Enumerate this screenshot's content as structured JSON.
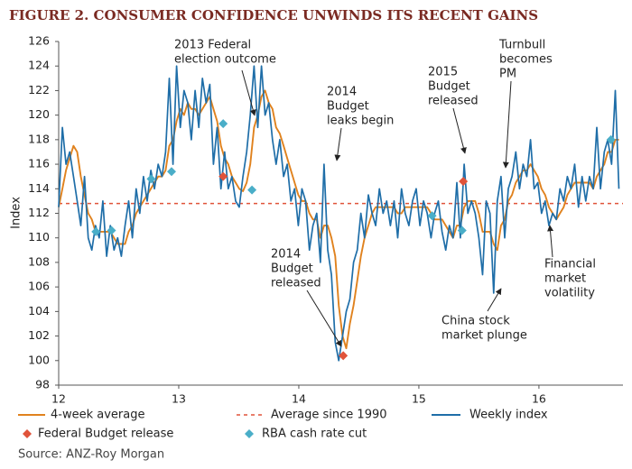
{
  "chart_data": {
    "type": "line",
    "title": "FIGURE 2. CONSUMER CONFIDENCE UNWINDS ITS RECENT GAINS",
    "y_label": "Index",
    "source": "Source: ANZ-Roy Morgan",
    "xlim": [
      12,
      16.7
    ],
    "xticks": [
      12,
      13,
      14,
      15,
      16
    ],
    "ylim": [
      98,
      126
    ],
    "yticks": [
      98,
      100,
      102,
      104,
      106,
      108,
      110,
      112,
      114,
      116,
      118,
      120,
      122,
      124,
      126
    ],
    "x": [
      12.0,
      12.031,
      12.061,
      12.092,
      12.123,
      12.154,
      12.184,
      12.215,
      12.246,
      12.276,
      12.307,
      12.338,
      12.368,
      12.399,
      12.43,
      12.461,
      12.491,
      12.522,
      12.553,
      12.583,
      12.614,
      12.645,
      12.675,
      12.706,
      12.737,
      12.768,
      12.798,
      12.829,
      12.86,
      12.89,
      12.921,
      12.952,
      12.982,
      13.013,
      13.044,
      13.075,
      13.105,
      13.136,
      13.167,
      13.197,
      13.228,
      13.259,
      13.289,
      13.32,
      13.351,
      13.382,
      13.412,
      13.443,
      13.474,
      13.504,
      13.535,
      13.566,
      13.596,
      13.627,
      13.658,
      13.689,
      13.719,
      13.75,
      13.781,
      13.811,
      13.842,
      13.873,
      13.903,
      13.934,
      13.965,
      13.996,
      14.026,
      14.057,
      14.088,
      14.118,
      14.149,
      14.18,
      14.21,
      14.241,
      14.272,
      14.303,
      14.333,
      14.364,
      14.395,
      14.425,
      14.456,
      14.487,
      14.517,
      14.548,
      14.579,
      14.61,
      14.64,
      14.671,
      14.702,
      14.732,
      14.763,
      14.794,
      14.824,
      14.855,
      14.886,
      14.917,
      14.947,
      14.978,
      15.009,
      15.039,
      15.07,
      15.101,
      15.131,
      15.162,
      15.193,
      15.224,
      15.254,
      15.285,
      15.316,
      15.346,
      15.377,
      15.408,
      15.438,
      15.469,
      15.5,
      15.531,
      15.561,
      15.592,
      15.623,
      15.653,
      15.684,
      15.715,
      15.745,
      15.776,
      15.807,
      15.838,
      15.868,
      15.899,
      15.93,
      15.96,
      15.991,
      16.022,
      16.052,
      16.083,
      16.114,
      16.145,
      16.175,
      16.206,
      16.237,
      16.267,
      16.298,
      16.329,
      16.359,
      16.39,
      16.421,
      16.452,
      16.482,
      16.513,
      16.544,
      16.574,
      16.605,
      16.636,
      16.666
    ],
    "series": [
      {
        "name": "Weekly index",
        "color": "#1f6ea8",
        "values": [
          112.5,
          119,
          116,
          117,
          115,
          113,
          111,
          115,
          110,
          109,
          111,
          110,
          113,
          108.5,
          111,
          109,
          110,
          108.5,
          111,
          113,
          110,
          114,
          112,
          115,
          113,
          115.5,
          114,
          116,
          115,
          117,
          123,
          116,
          124,
          119,
          122,
          121,
          118,
          122,
          119,
          123,
          121,
          122.5,
          116,
          119,
          114,
          117,
          114,
          115,
          113,
          112.5,
          115,
          117,
          120,
          124,
          119,
          124,
          120,
          121,
          118,
          116,
          118,
          115,
          116,
          113,
          114,
          111,
          114,
          113,
          109,
          111,
          112,
          108,
          116,
          109,
          107,
          101.5,
          100,
          102,
          104,
          105,
          108,
          109,
          112,
          110,
          113.5,
          112,
          111,
          114,
          112,
          113,
          111,
          113,
          110,
          114,
          112,
          111,
          113,
          114,
          111,
          113,
          112,
          110,
          112,
          113,
          110.5,
          109,
          111,
          110,
          114.5,
          110,
          116,
          112,
          113,
          112,
          110,
          107,
          113,
          112,
          105.5,
          113,
          115,
          110,
          114,
          115,
          117,
          114,
          116,
          115,
          118,
          114,
          114.5,
          112,
          113,
          111,
          112,
          111.5,
          114,
          113,
          115,
          114,
          116,
          112.5,
          115,
          113,
          115,
          114,
          119,
          114,
          117,
          118,
          116,
          122,
          114
        ]
      },
      {
        "name": "4-week average",
        "color": "#e0821e",
        "values": [
          112.5,
          114,
          115.5,
          116.5,
          117.5,
          117,
          115,
          113.5,
          112,
          111.5,
          110.5,
          110.5,
          110.5,
          110.5,
          110.5,
          110,
          109.5,
          109.5,
          109.5,
          110.5,
          111,
          112,
          112.5,
          113,
          113.5,
          114,
          114.5,
          115,
          115,
          115.5,
          117.5,
          118,
          119.5,
          120.5,
          120,
          121,
          120.5,
          120.5,
          120,
          120.5,
          121,
          121.5,
          120.5,
          119.5,
          117.5,
          116.5,
          116,
          115,
          114.5,
          114,
          113.8,
          114.5,
          116,
          119,
          120,
          121.5,
          122,
          121,
          120.5,
          119,
          118.5,
          117.5,
          116.5,
          115.5,
          114.5,
          113.5,
          113,
          113,
          112,
          111.5,
          111.5,
          110,
          111,
          111,
          110,
          108.5,
          104.5,
          102,
          101,
          103,
          104.5,
          106.5,
          108.5,
          110,
          111,
          112,
          112.5,
          112.5,
          112.5,
          112.5,
          112.5,
          112.5,
          112,
          112,
          112.5,
          112.5,
          112.5,
          112.5,
          112.5,
          112.5,
          112.5,
          112,
          111.5,
          111.5,
          111.5,
          111,
          110.5,
          110,
          111,
          111,
          112.5,
          113,
          113,
          113,
          112,
          110.5,
          110.5,
          110.5,
          109.5,
          109,
          111,
          111.5,
          113,
          113.5,
          114.5,
          115,
          115.5,
          115.5,
          116,
          115.5,
          115,
          114,
          113.5,
          112.5,
          112,
          111.5,
          112,
          112.5,
          113.5,
          114,
          114.5,
          114.5,
          114.5,
          114.5,
          114.5,
          114,
          115,
          115.5,
          116,
          117,
          117,
          118,
          118
        ]
      }
    ],
    "reference_line": {
      "name": "Average since 1990",
      "value": 112.8,
      "color": "#e0533a"
    },
    "points": [
      {
        "name": "Federal Budget release",
        "color": "#e0533a",
        "x": [
          13.37,
          14.37,
          15.37
        ],
        "values": [
          115,
          100.4,
          114.6
        ]
      },
      {
        "name": "RBA cash rate cut",
        "color": "#4aaec8",
        "x": [
          12.31,
          12.44,
          12.77,
          12.94,
          13.37,
          13.61,
          15.11,
          15.36,
          16.6
        ],
        "values": [
          110.5,
          110.6,
          114.8,
          115.4,
          119.3,
          113.9,
          111.8,
          110.6,
          118
        ]
      }
    ],
    "annotations": [
      {
        "text": [
          "2013 Federal",
          "election outcome"
        ]
      },
      {
        "text": [
          "2014",
          "Budget",
          "leaks begin"
        ]
      },
      {
        "text": [
          "2014",
          "Budget",
          "released"
        ]
      },
      {
        "text": [
          "2015",
          "Budget",
          "released"
        ]
      },
      {
        "text": [
          "Turnbull",
          "becomes",
          "PM"
        ]
      },
      {
        "text": [
          "Financial",
          "market",
          "volatility"
        ]
      },
      {
        "text": [
          "China stock",
          "market plunge"
        ]
      }
    ]
  }
}
